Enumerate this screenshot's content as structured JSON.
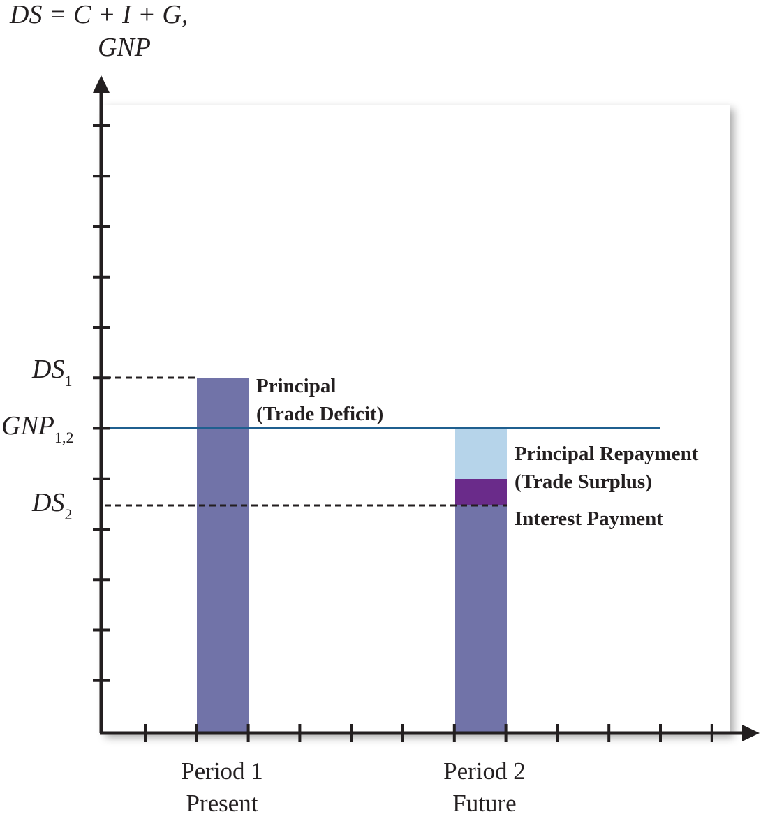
{
  "axis": {
    "y_label_line1": "DS = C + I + G,",
    "y_label_line2": "GNP"
  },
  "tick_labels": [
    {
      "main": "DS",
      "sub": "1"
    },
    {
      "main": "GNP",
      "sub": "1,2"
    },
    {
      "main": "DS",
      "sub": "2"
    }
  ],
  "annotations": {
    "principal": "Principal",
    "trade_deficit": "(Trade Deficit)",
    "principal_repayment": "Principal Repayment",
    "trade_surplus": "(Trade Surplus)",
    "interest_payment": "Interest Payment"
  },
  "categories": [
    {
      "line1": "Period 1",
      "line2": "Present"
    },
    {
      "line1": "Period 2",
      "line2": "Future"
    }
  ]
}
